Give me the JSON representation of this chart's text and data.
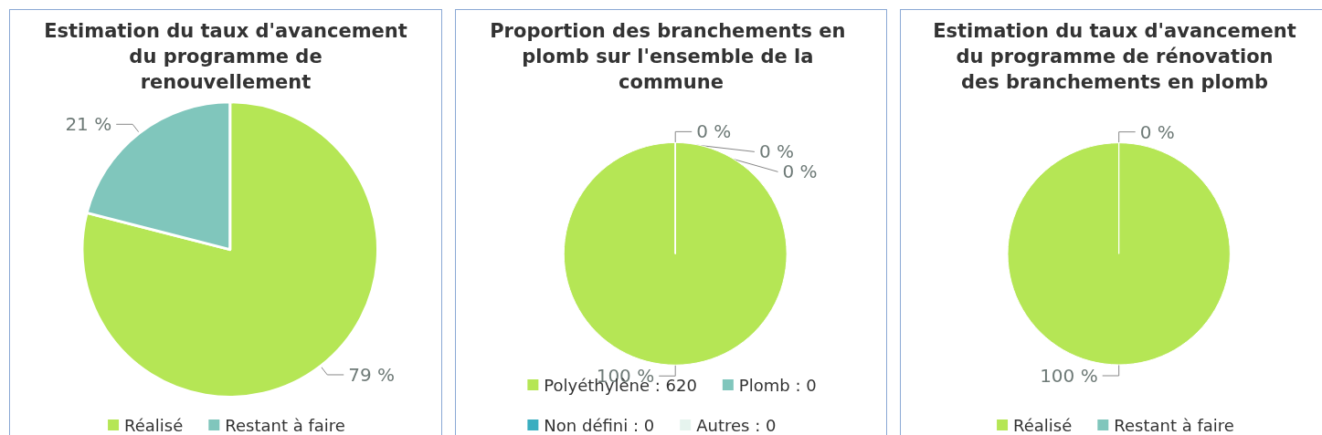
{
  "chart_data": [
    {
      "type": "pie",
      "title": "Estimation du taux d'avancement du programme de renouvellement",
      "categories": [
        "Réalisé",
        "Restant à faire"
      ],
      "values": [
        79,
        21
      ],
      "colors": [
        "#b5e655",
        "#80c6bc"
      ],
      "value_labels": [
        "79 %",
        "21 %"
      ],
      "legend": "bottom"
    },
    {
      "type": "pie",
      "title": "Proportion des branchements en plomb sur l'ensemble de la commune",
      "categories": [
        "Polyéthylène : 620",
        "Plomb : 0",
        "Non défini : 0",
        "Autres : 0"
      ],
      "values": [
        100,
        0,
        0,
        0
      ],
      "colors": [
        "#b5e655",
        "#80c6bc",
        "#3aaec0",
        "#e6f4ee"
      ],
      "value_labels": [
        "100 %",
        "0 %",
        "0 %",
        "0 %"
      ],
      "legend": "bottom"
    },
    {
      "type": "pie",
      "title": "Estimation du taux d'avancement du programme de rénovation des branchements en plomb",
      "categories": [
        "Réalisé",
        "Restant à faire"
      ],
      "values": [
        100,
        0
      ],
      "colors": [
        "#b5e655",
        "#80c6bc"
      ],
      "value_labels": [
        "100 %",
        "0 %"
      ],
      "legend": "bottom"
    }
  ]
}
